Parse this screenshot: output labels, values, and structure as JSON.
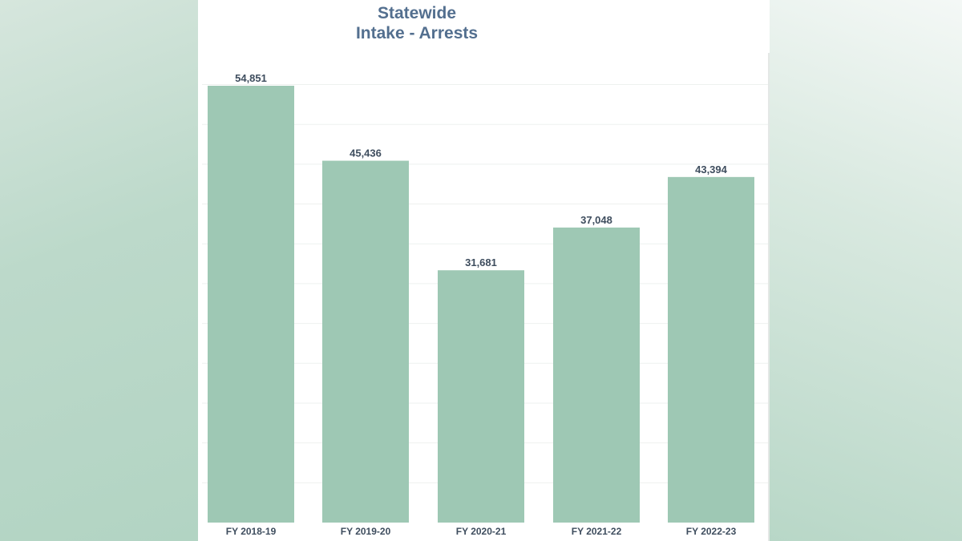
{
  "chart_data": {
    "type": "bar",
    "title_lines": [
      "Statewide",
      "Intake - Arrests"
    ],
    "categories": [
      "FY 2018-19",
      "FY 2019-20",
      "FY 2020-21",
      "FY 2021-22",
      "FY 2022-23"
    ],
    "values": [
      54851,
      45436,
      31681,
      37048,
      43394
    ],
    "value_labels": [
      "54,851",
      "45,436",
      "31,681",
      "37,048",
      "43,394"
    ],
    "ylim": [
      0,
      60000
    ],
    "grid": true,
    "bar_color": "#9ec8b4",
    "title_color": "#536f8f"
  }
}
